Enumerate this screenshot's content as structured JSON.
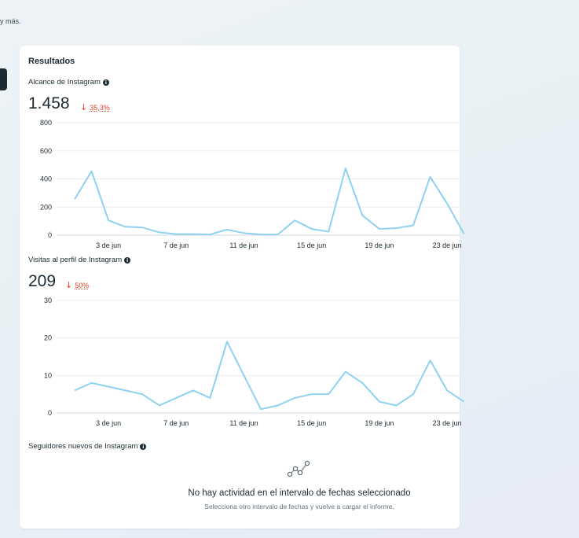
{
  "intro_text": "y más.",
  "results_title": "Resultados",
  "reach": {
    "label": "Alcance de Instagram",
    "value": "1.458",
    "delta": "35,3%",
    "chart_data": {
      "type": "line",
      "ylim": [
        0,
        800
      ],
      "yticks": [
        0,
        200,
        400,
        600,
        800
      ],
      "xticks": [
        "3 de jun",
        "7 de jun",
        "11 de jun",
        "15 de jun",
        "19 de jun",
        "23 de jun"
      ],
      "series": [
        {
          "color": "#8fd1f1",
          "x": [
            1,
            2,
            3,
            4,
            5,
            6,
            7,
            8,
            9,
            10,
            11,
            12,
            13,
            14,
            15,
            16,
            17,
            18,
            19,
            20,
            21,
            22,
            23,
            24
          ],
          "values": [
            255,
            455,
            105,
            60,
            55,
            20,
            8,
            8,
            5,
            40,
            15,
            5,
            5,
            105,
            45,
            25,
            475,
            140,
            45,
            50,
            70,
            415,
            225,
            10
          ]
        }
      ]
    }
  },
  "visits": {
    "label": "Visitas al perfil de Instagram",
    "value": "209",
    "delta": "50%",
    "chart_data": {
      "type": "line",
      "ylim": [
        0,
        30
      ],
      "yticks": [
        0,
        10,
        20,
        30
      ],
      "xticks": [
        "3 de jun",
        "7 de jun",
        "11 de jun",
        "15 de jun",
        "19 de jun",
        "23 de jun"
      ],
      "series": [
        {
          "color": "#8fd1f1",
          "x": [
            1,
            2,
            3,
            4,
            5,
            6,
            7,
            8,
            9,
            10,
            11,
            12,
            13,
            14,
            15,
            16,
            17,
            18,
            19,
            20,
            21,
            22,
            23,
            24
          ],
          "values": [
            6,
            8,
            7,
            6,
            5,
            2,
            4,
            6,
            4,
            19,
            10,
            1,
            2,
            4,
            5,
            5,
            11,
            8,
            3,
            2,
            5,
            14,
            6,
            3
          ]
        }
      ]
    }
  },
  "followers": {
    "label": "Seguidores nuevos de Instagram",
    "empty_title": "No hay actividad en el intervalo de fechas seleccionado",
    "empty_subtitle": "Selecciona otro intervalo de fechas y vuelve a cargar el informe."
  },
  "icons": {
    "info": "info-icon",
    "no_activity": "line-chart-icon"
  }
}
